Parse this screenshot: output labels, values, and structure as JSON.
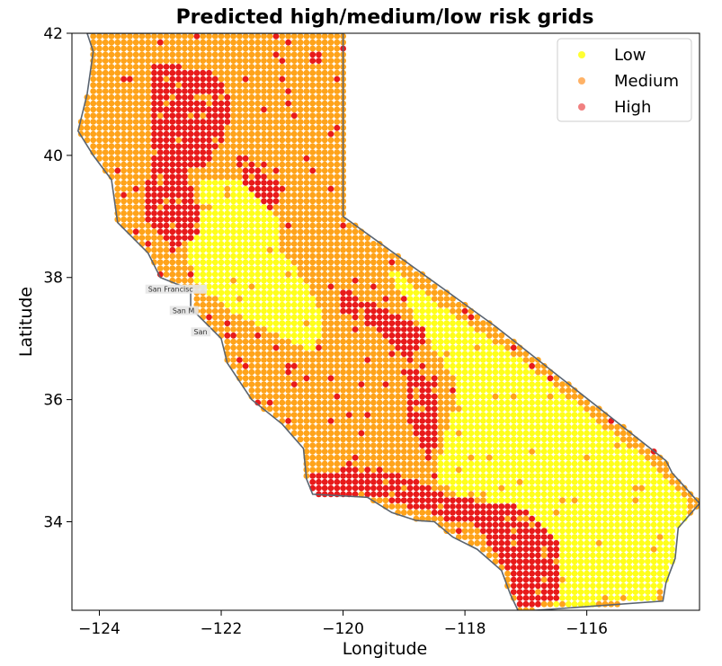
{
  "chart_data": {
    "type": "scatter",
    "title": "Predicted high/medium/low risk grids",
    "xlabel": "Longitude",
    "ylabel": "Latitude",
    "xlim": [
      -124.45,
      -114.15
    ],
    "ylim": [
      32.55,
      42.0
    ],
    "xticks": [
      -124,
      -122,
      -120,
      -118,
      -116
    ],
    "yticks": [
      34,
      36,
      38,
      40,
      42
    ],
    "grid": false,
    "legend_position": "top-right",
    "series": [
      {
        "name": "Low",
        "color": "#ffff33"
      },
      {
        "name": "Medium",
        "color": "#ffb266"
      },
      {
        "name": "High",
        "color": "#f08080"
      }
    ],
    "marker_colors": {
      "Low": "#ffff1a",
      "Medium": "#ffa31a",
      "High": "#e81a1a"
    },
    "base_map_labels": [
      "San Francisc",
      "San M",
      "San"
    ],
    "regions": [
      {
        "level": "Low",
        "polygon": [
          [
            -119.3,
            38.2
          ],
          [
            -118.5,
            37.6
          ],
          [
            -117.9,
            37.2
          ],
          [
            -117.3,
            36.8
          ],
          [
            -116.6,
            36.3
          ],
          [
            -115.8,
            35.6
          ],
          [
            -115.0,
            35.0
          ],
          [
            -114.6,
            34.6
          ],
          [
            -114.3,
            34.3
          ],
          [
            -114.5,
            33.7
          ],
          [
            -114.7,
            33.0
          ],
          [
            -114.9,
            32.75
          ],
          [
            -116.3,
            32.6
          ],
          [
            -116.9,
            33.2
          ],
          [
            -117.5,
            33.9
          ],
          [
            -118.0,
            34.35
          ],
          [
            -118.5,
            34.7
          ],
          [
            -118.3,
            35.5
          ],
          [
            -118.1,
            36.2
          ],
          [
            -118.7,
            37.1
          ]
        ]
      },
      {
        "level": "Low",
        "polygon": [
          [
            -122.3,
            39.6
          ],
          [
            -121.6,
            39.6
          ],
          [
            -121.1,
            39.0
          ],
          [
            -121.0,
            38.4
          ],
          [
            -120.6,
            37.9
          ],
          [
            -120.3,
            37.3
          ],
          [
            -120.5,
            36.8
          ],
          [
            -121.0,
            37.0
          ],
          [
            -121.8,
            37.4
          ],
          [
            -122.4,
            37.9
          ],
          [
            -122.6,
            38.4
          ],
          [
            -122.4,
            39.0
          ]
        ]
      },
      {
        "level": "Low",
        "polygon": [
          [
            -116.6,
            33.5
          ],
          [
            -116.4,
            33.45
          ],
          [
            -116.1,
            32.7
          ],
          [
            -116.3,
            32.6
          ],
          [
            -116.9,
            32.7
          ],
          [
            -117.0,
            33.0
          ]
        ]
      },
      {
        "level": "High",
        "polygon": [
          [
            -123.1,
            41.5
          ],
          [
            -122.2,
            41.4
          ],
          [
            -121.8,
            40.9
          ],
          [
            -122.0,
            40.2
          ],
          [
            -122.3,
            39.8
          ],
          [
            -122.9,
            39.8
          ],
          [
            -123.2,
            40.3
          ]
        ]
      },
      {
        "level": "High",
        "polygon": [
          [
            -123.0,
            40.2
          ],
          [
            -122.6,
            39.8
          ],
          [
            -122.4,
            39.2
          ],
          [
            -122.3,
            38.7
          ],
          [
            -122.8,
            38.5
          ],
          [
            -123.2,
            38.9
          ],
          [
            -123.3,
            39.5
          ]
        ]
      },
      {
        "level": "High",
        "polygon": [
          [
            -121.8,
            40.1
          ],
          [
            -121.1,
            39.6
          ],
          [
            -120.9,
            39.4
          ],
          [
            -121.2,
            39.1
          ],
          [
            -121.6,
            39.5
          ]
        ]
      },
      {
        "level": "High",
        "polygon": [
          [
            -120.0,
            37.8
          ],
          [
            -119.1,
            37.4
          ],
          [
            -118.6,
            37.1
          ],
          [
            -118.9,
            36.6
          ],
          [
            -119.4,
            37.1
          ],
          [
            -120.1,
            37.5
          ]
        ]
      },
      {
        "level": "High",
        "polygon": [
          [
            -119.0,
            36.5
          ],
          [
            -118.5,
            36.4
          ],
          [
            -118.4,
            35.5
          ],
          [
            -118.6,
            35.0
          ],
          [
            -118.9,
            35.6
          ]
        ]
      },
      {
        "level": "High",
        "polygon": [
          [
            -120.6,
            34.8
          ],
          [
            -119.5,
            34.9
          ],
          [
            -118.9,
            34.7
          ],
          [
            -118.2,
            34.4
          ],
          [
            -117.3,
            34.3
          ],
          [
            -116.9,
            34.1
          ],
          [
            -116.5,
            33.7
          ],
          [
            -116.5,
            32.7
          ],
          [
            -117.1,
            32.6
          ],
          [
            -117.3,
            33.2
          ],
          [
            -117.8,
            33.9
          ],
          [
            -118.5,
            34.1
          ],
          [
            -119.4,
            34.4
          ],
          [
            -120.5,
            34.4
          ]
        ]
      }
    ]
  }
}
